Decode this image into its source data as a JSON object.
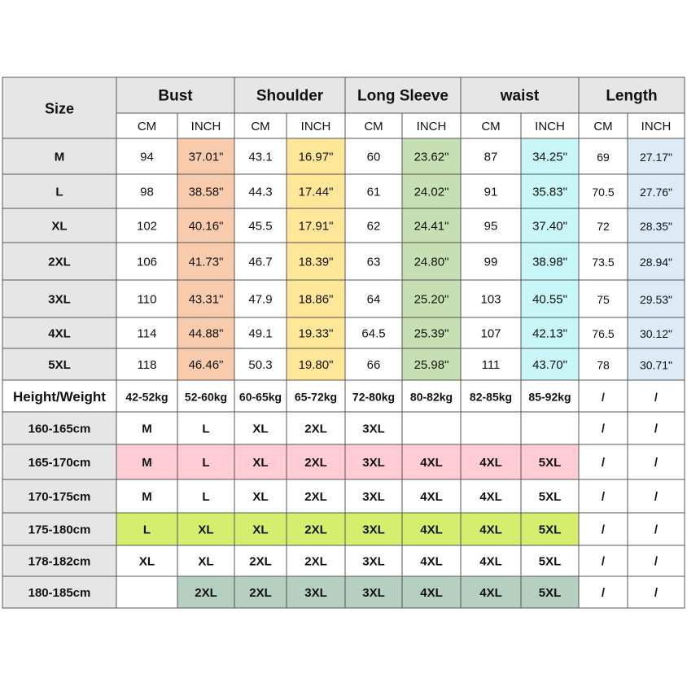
{
  "size_table": {
    "corner": "Size",
    "groups": [
      {
        "name": "Bust",
        "color": "#f8cbad"
      },
      {
        "name": "Shoulder",
        "color": "#ffe699"
      },
      {
        "name": "Long Sleeve",
        "color": "#c6e0b4"
      },
      {
        "name": "waist",
        "color": "#c9f7f7"
      },
      {
        "name": "Length",
        "color": "#ddebf7"
      }
    ],
    "units": [
      "CM",
      "INCH",
      "CM",
      "INCH",
      "CM",
      "INCH",
      "CM",
      "INCH",
      "CM",
      "INCH"
    ],
    "rows": [
      {
        "size": "M",
        "cells": [
          "94",
          "37.01\"",
          "43.1",
          "16.97\"",
          "60",
          "23.62\"",
          "87",
          "34.25\"",
          "69",
          "27.17\""
        ]
      },
      {
        "size": "L",
        "cells": [
          "98",
          "38.58\"",
          "44.3",
          "17.44\"",
          "61",
          "24.02\"",
          "91",
          "35.83\"",
          "70.5",
          "27.76\""
        ]
      },
      {
        "size": "XL",
        "cells": [
          "102",
          "40.16\"",
          "45.5",
          "17.91\"",
          "62",
          "24.41\"",
          "95",
          "37.40\"",
          "72",
          "28.35\""
        ]
      },
      {
        "size": "2XL",
        "cells": [
          "106",
          "41.73\"",
          "46.7",
          "18.39\"",
          "63",
          "24.80\"",
          "99",
          "38.98\"",
          "73.5",
          "28.94\""
        ]
      },
      {
        "size": "3XL",
        "cells": [
          "110",
          "43.31\"",
          "47.9",
          "18.86\"",
          "64",
          "25.20\"",
          "103",
          "40.55\"",
          "75",
          "29.53\""
        ]
      },
      {
        "size": "4XL",
        "cells": [
          "114",
          "44.88\"",
          "49.1",
          "19.33\"",
          "64.5",
          "25.39\"",
          "107",
          "42.13\"",
          "76.5",
          "30.12\""
        ]
      },
      {
        "size": "5XL",
        "cells": [
          "118",
          "46.46\"",
          "50.3",
          "19.80\"",
          "66",
          "25.98\"",
          "111",
          "43.70\"",
          "78",
          "30.71\""
        ]
      }
    ]
  },
  "fit_table": {
    "header": [
      "Height/Weight",
      "42-52kg",
      "52-60kg",
      "60-65kg",
      "65-72kg",
      "72-80kg",
      "80-82kg",
      "82-85kg",
      "85-92kg",
      "/",
      "/"
    ],
    "rows": [
      {
        "cells": [
          "160-165cm",
          "M",
          "L",
          "XL",
          "2XL",
          "3XL",
          null,
          null,
          null,
          "/",
          "/"
        ]
      },
      {
        "cells": [
          "165-170cm",
          "M",
          "L",
          "XL",
          "2XL",
          "3XL",
          "4XL",
          "4XL",
          "5XL",
          "/",
          "/"
        ],
        "color": "#ffccd5"
      },
      {
        "cells": [
          "170-175cm",
          "M",
          "L",
          "XL",
          "2XL",
          "3XL",
          "4XL",
          "4XL",
          "5XL",
          "/",
          "/"
        ]
      },
      {
        "cells": [
          "175-180cm",
          "L",
          "XL",
          "XL",
          "2XL",
          "3XL",
          "4XL",
          "4XL",
          "5XL",
          "/",
          "/"
        ],
        "color": "#d5ee6e"
      },
      {
        "cells": [
          "178-182cm",
          "XL",
          "XL",
          "2XL",
          "2XL",
          "3XL",
          "4XL",
          "4XL",
          "5XL",
          "/",
          "/"
        ]
      },
      {
        "cells": [
          "180-185cm",
          null,
          "2XL",
          "2XL",
          "3XL",
          "3XL",
          "4XL",
          "4XL",
          "5XL",
          "/",
          "/"
        ],
        "color": "#b5cfc1"
      }
    ]
  }
}
